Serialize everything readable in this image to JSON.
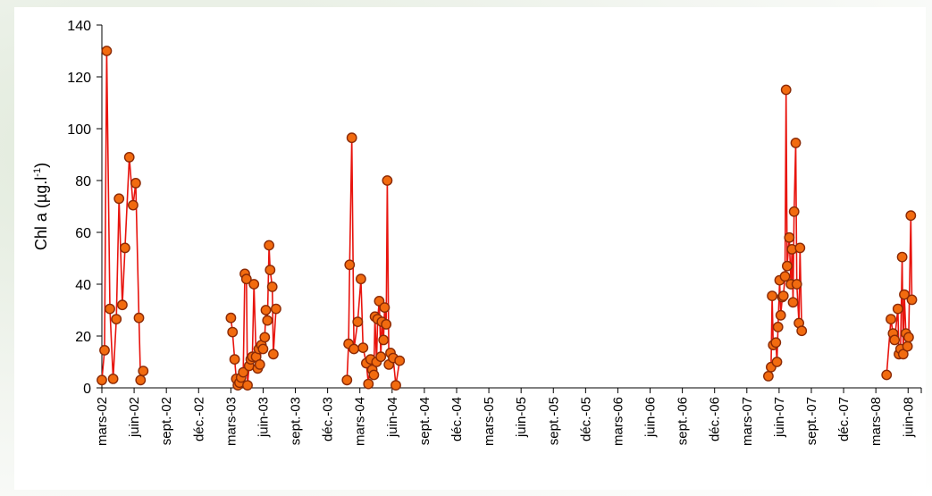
{
  "chart_data": {
    "type": "line",
    "ylabel_main": "Chl a (µg.l",
    "ylabel_sup": "-1",
    "ylabel_close": ")",
    "ylim": [
      0,
      140
    ],
    "yticks": [
      0,
      20,
      40,
      60,
      80,
      100,
      120,
      140
    ],
    "xlabels": [
      "mars-02",
      "juin-02",
      "sept.-02",
      "déc.-02",
      "mars-03",
      "juin-03",
      "sept.-03",
      "déc.-03",
      "mars-04",
      "juin-04",
      "sept.-04",
      "déc.-04",
      "mars-05",
      "juin-05",
      "sept.-05",
      "déc.-05",
      "mars-06",
      "juin-06",
      "sept.-06",
      "déc.-06",
      "mars-07",
      "juin-07",
      "sept.-07",
      "déc.-07",
      "mars-08",
      "juin-08"
    ],
    "x_unit": "months since mars-02",
    "grid": false,
    "legend": "none",
    "colors": {
      "line": "#e8140e",
      "marker_fill": "#f26b0f",
      "marker_edge": "#8b2a05"
    },
    "segments": [
      [
        [
          0.0,
          3
        ],
        [
          0.25,
          14.5
        ],
        [
          0.45,
          130
        ],
        [
          0.75,
          30.5
        ],
        [
          1.05,
          3.5
        ],
        [
          1.35,
          26.5
        ],
        [
          1.6,
          73
        ],
        [
          1.9,
          32
        ],
        [
          2.15,
          54
        ],
        [
          2.55,
          89
        ],
        [
          2.9,
          70.5
        ],
        [
          3.15,
          79
        ],
        [
          3.45,
          27
        ],
        [
          3.6,
          3
        ],
        [
          3.85,
          6.5
        ]
      ],
      [
        [
          12.0,
          27
        ],
        [
          12.15,
          21.5
        ],
        [
          12.35,
          11
        ],
        [
          12.5,
          3.5
        ],
        [
          12.65,
          1
        ],
        [
          12.8,
          2
        ],
        [
          12.95,
          4
        ],
        [
          13.15,
          6
        ],
        [
          13.3,
          44
        ],
        [
          13.45,
          42
        ],
        [
          13.55,
          1
        ],
        [
          13.7,
          8.5
        ],
        [
          13.85,
          11
        ],
        [
          14.0,
          12
        ],
        [
          14.15,
          40
        ],
        [
          14.35,
          12
        ],
        [
          14.5,
          7.5
        ],
        [
          14.6,
          15
        ],
        [
          14.7,
          9
        ],
        [
          14.85,
          16.5
        ],
        [
          15.0,
          15
        ],
        [
          15.15,
          19.5
        ],
        [
          15.25,
          30
        ],
        [
          15.4,
          26
        ],
        [
          15.55,
          55
        ],
        [
          15.65,
          45.5
        ],
        [
          15.85,
          39
        ],
        [
          15.95,
          13
        ],
        [
          16.2,
          30.5
        ]
      ],
      [
        [
          22.8,
          3
        ],
        [
          22.95,
          17
        ],
        [
          23.05,
          47.5
        ],
        [
          23.25,
          96.5
        ],
        [
          23.45,
          15
        ],
        [
          23.8,
          25.5
        ],
        [
          24.1,
          42
        ],
        [
          24.3,
          15.5
        ],
        [
          24.6,
          9.5
        ],
        [
          24.8,
          1.5
        ],
        [
          25.0,
          11
        ],
        [
          25.15,
          7
        ],
        [
          25.3,
          5
        ],
        [
          25.4,
          27.5
        ],
        [
          25.55,
          10
        ],
        [
          25.65,
          26.5
        ],
        [
          25.8,
          33.5
        ],
        [
          25.95,
          12
        ],
        [
          26.05,
          25.5
        ],
        [
          26.2,
          18.5
        ],
        [
          26.3,
          31
        ],
        [
          26.45,
          24.5
        ],
        [
          26.55,
          80
        ],
        [
          26.7,
          9
        ],
        [
          26.85,
          13.5
        ],
        [
          27.1,
          11.5
        ],
        [
          27.35,
          1
        ],
        [
          27.7,
          10.5
        ]
      ],
      [
        [
          62.0,
          4.5
        ],
        [
          62.25,
          8
        ],
        [
          62.35,
          35.5
        ],
        [
          62.45,
          16.5
        ],
        [
          62.7,
          17.5
        ],
        [
          62.8,
          10
        ],
        [
          62.9,
          23.5
        ],
        [
          63.05,
          41.5
        ],
        [
          63.15,
          28
        ],
        [
          63.3,
          35
        ],
        [
          63.4,
          35.5
        ],
        [
          63.55,
          43
        ],
        [
          63.65,
          115
        ],
        [
          63.75,
          47
        ],
        [
          63.95,
          58
        ],
        [
          64.1,
          40
        ],
        [
          64.2,
          53.5
        ],
        [
          64.3,
          33
        ],
        [
          64.4,
          68
        ],
        [
          64.55,
          94.5
        ],
        [
          64.65,
          40
        ],
        [
          64.85,
          25
        ],
        [
          64.95,
          54
        ],
        [
          65.1,
          22
        ]
      ],
      [
        [
          73.0,
          5
        ],
        [
          73.4,
          26.5
        ],
        [
          73.6,
          21
        ],
        [
          73.75,
          18.5
        ],
        [
          74.05,
          30.5
        ],
        [
          74.15,
          13
        ],
        [
          74.3,
          15
        ],
        [
          74.45,
          50.5
        ],
        [
          74.55,
          13
        ],
        [
          74.65,
          36
        ],
        [
          74.8,
          21
        ],
        [
          74.95,
          16
        ],
        [
          75.05,
          19.5
        ],
        [
          75.25,
          66.5
        ],
        [
          75.35,
          34
        ]
      ]
    ]
  }
}
